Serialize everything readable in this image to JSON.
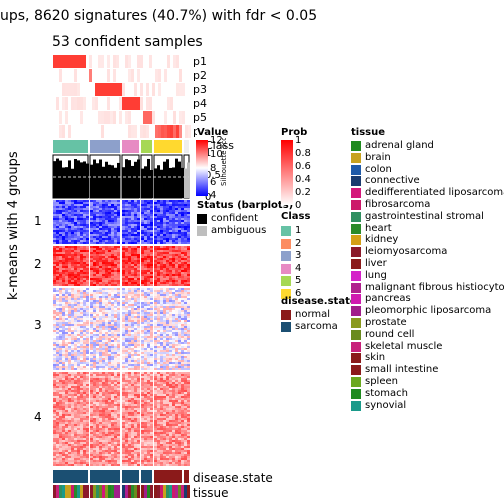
{
  "title": "ups, 8620 signatures (40.7%) with fdr < 0.05",
  "subtitle": "53 confident samples",
  "y_axis_label": "k-means with 4 groups",
  "chart_data": {
    "type": "heatmap",
    "groups": [
      "1",
      "2",
      "3",
      "4"
    ],
    "prob_rows": [
      "p1",
      "p2",
      "p3",
      "p4",
      "p5",
      "p6"
    ],
    "class_row_label": "Class",
    "silhouette_label": "Silhouette score",
    "silhouette_ticks": [
      "1",
      "0.5",
      "0"
    ],
    "bottom_annotations": [
      "disease.state",
      "tissue"
    ]
  },
  "legends": {
    "value": {
      "title": "Value",
      "ticks": [
        "12",
        "10",
        "8",
        "6",
        "4"
      ]
    },
    "status": {
      "title": "Status (barplots)",
      "items": [
        "confident",
        "ambiguous"
      ],
      "colors": [
        "#000000",
        "#bebebe"
      ]
    },
    "prob": {
      "title": "Prob",
      "ticks": [
        "1",
        "0.8",
        "0.6",
        "0.4",
        "0.2",
        "0"
      ]
    },
    "class": {
      "title": "Class",
      "items": [
        "1",
        "2",
        "3",
        "4",
        "5",
        "6"
      ],
      "colors": [
        "#66c2a5",
        "#fc8d62",
        "#8da0cb",
        "#e78ac3",
        "#a6d854",
        "#ffd92f"
      ]
    },
    "disease_state": {
      "title": "disease.state",
      "items": [
        "normal",
        "sarcoma"
      ],
      "colors": [
        "#8b1a1a",
        "#1b4f72"
      ]
    },
    "tissue": {
      "title": "tissue",
      "items": [
        "adrenal gland",
        "brain",
        "colon",
        "connective",
        "dedifferentiated liposarcoma",
        "fibrosarcoma",
        "gastrointestinal stromal",
        "heart",
        "kidney",
        "leiomyosarcoma",
        "liver",
        "lung",
        "malignant fibrous histiocytoma",
        "pancreas",
        "pleomorphic liposarcoma",
        "prostate",
        "round cell",
        "skeletal muscle",
        "skin",
        "small intestine",
        "spleen",
        "stomach",
        "synovial"
      ],
      "colors": [
        "#1e8a1e",
        "#c8a21e",
        "#1f5aa8",
        "#1a3b6e",
        "#d4177a",
        "#cc1a6a",
        "#2f8f60",
        "#2a8a2a",
        "#d4a017",
        "#8b1a2a",
        "#8b1a1a",
        "#d420c8",
        "#b0208e",
        "#d01ab0",
        "#a01e8a",
        "#8a9a1e",
        "#6a8a1e",
        "#c8207a",
        "#8b1a1a",
        "#8b1a1a",
        "#6aa81e",
        "#1e8a1e",
        "#1a9a8a"
      ]
    }
  }
}
